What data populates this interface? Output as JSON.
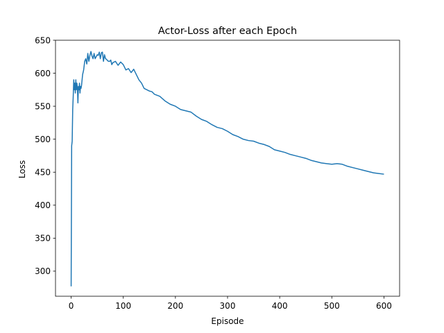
{
  "chart_data": {
    "type": "line",
    "title": "Actor-Loss after each Epoch",
    "xlabel": "Episode",
    "ylabel": "Loss",
    "xlim": [
      -30,
      630
    ],
    "ylim": [
      262,
      650
    ],
    "xticks": [
      0,
      100,
      200,
      300,
      400,
      500,
      600
    ],
    "yticks": [
      300,
      350,
      400,
      450,
      500,
      550,
      600,
      650
    ],
    "grid": false,
    "legend": "none",
    "series": [
      {
        "color": "#1f77b4",
        "x": [
          0,
          1,
          2,
          3,
          4,
          5,
          6,
          7,
          8,
          9,
          10,
          11,
          12,
          13,
          14,
          15,
          16,
          17,
          18,
          19,
          20,
          22,
          24,
          26,
          28,
          30,
          32,
          34,
          36,
          38,
          40,
          42,
          44,
          46,
          48,
          50,
          52,
          54,
          56,
          58,
          60,
          62,
          64,
          66,
          68,
          70,
          72,
          74,
          76,
          78,
          80,
          85,
          90,
          95,
          100,
          105,
          110,
          115,
          120,
          125,
          130,
          135,
          140,
          145,
          150,
          155,
          160,
          170,
          180,
          190,
          200,
          210,
          220,
          230,
          240,
          250,
          260,
          270,
          280,
          290,
          300,
          310,
          320,
          330,
          340,
          350,
          360,
          370,
          380,
          390,
          400,
          410,
          420,
          430,
          440,
          450,
          460,
          470,
          480,
          490,
          500,
          510,
          520,
          530,
          540,
          550,
          560,
          570,
          580,
          590,
          600
        ],
        "y": [
          277,
          490,
          497,
          545,
          565,
          590,
          575,
          585,
          570,
          590,
          575,
          585,
          578,
          555,
          580,
          575,
          585,
          570,
          580,
          577,
          582,
          598,
          605,
          618,
          622,
          614,
          630,
          618,
          627,
          633,
          626,
          622,
          630,
          622,
          625,
          628,
          627,
          632,
          622,
          631,
          632,
          618,
          628,
          622,
          621,
          619,
          618,
          618,
          620,
          613,
          616,
          618,
          612,
          617,
          613,
          605,
          607,
          601,
          606,
          598,
          590,
          585,
          577,
          575,
          573,
          572,
          568,
          565,
          558,
          553,
          550,
          545,
          543,
          541,
          535,
          530,
          527,
          522,
          518,
          516,
          512,
          507,
          504,
          500,
          498,
          497,
          494,
          492,
          489,
          484,
          482,
          480,
          477,
          475,
          473,
          471,
          468,
          466,
          464,
          463,
          462,
          463,
          462,
          459,
          457,
          455,
          453,
          451,
          449,
          448,
          447
        ]
      }
    ]
  }
}
